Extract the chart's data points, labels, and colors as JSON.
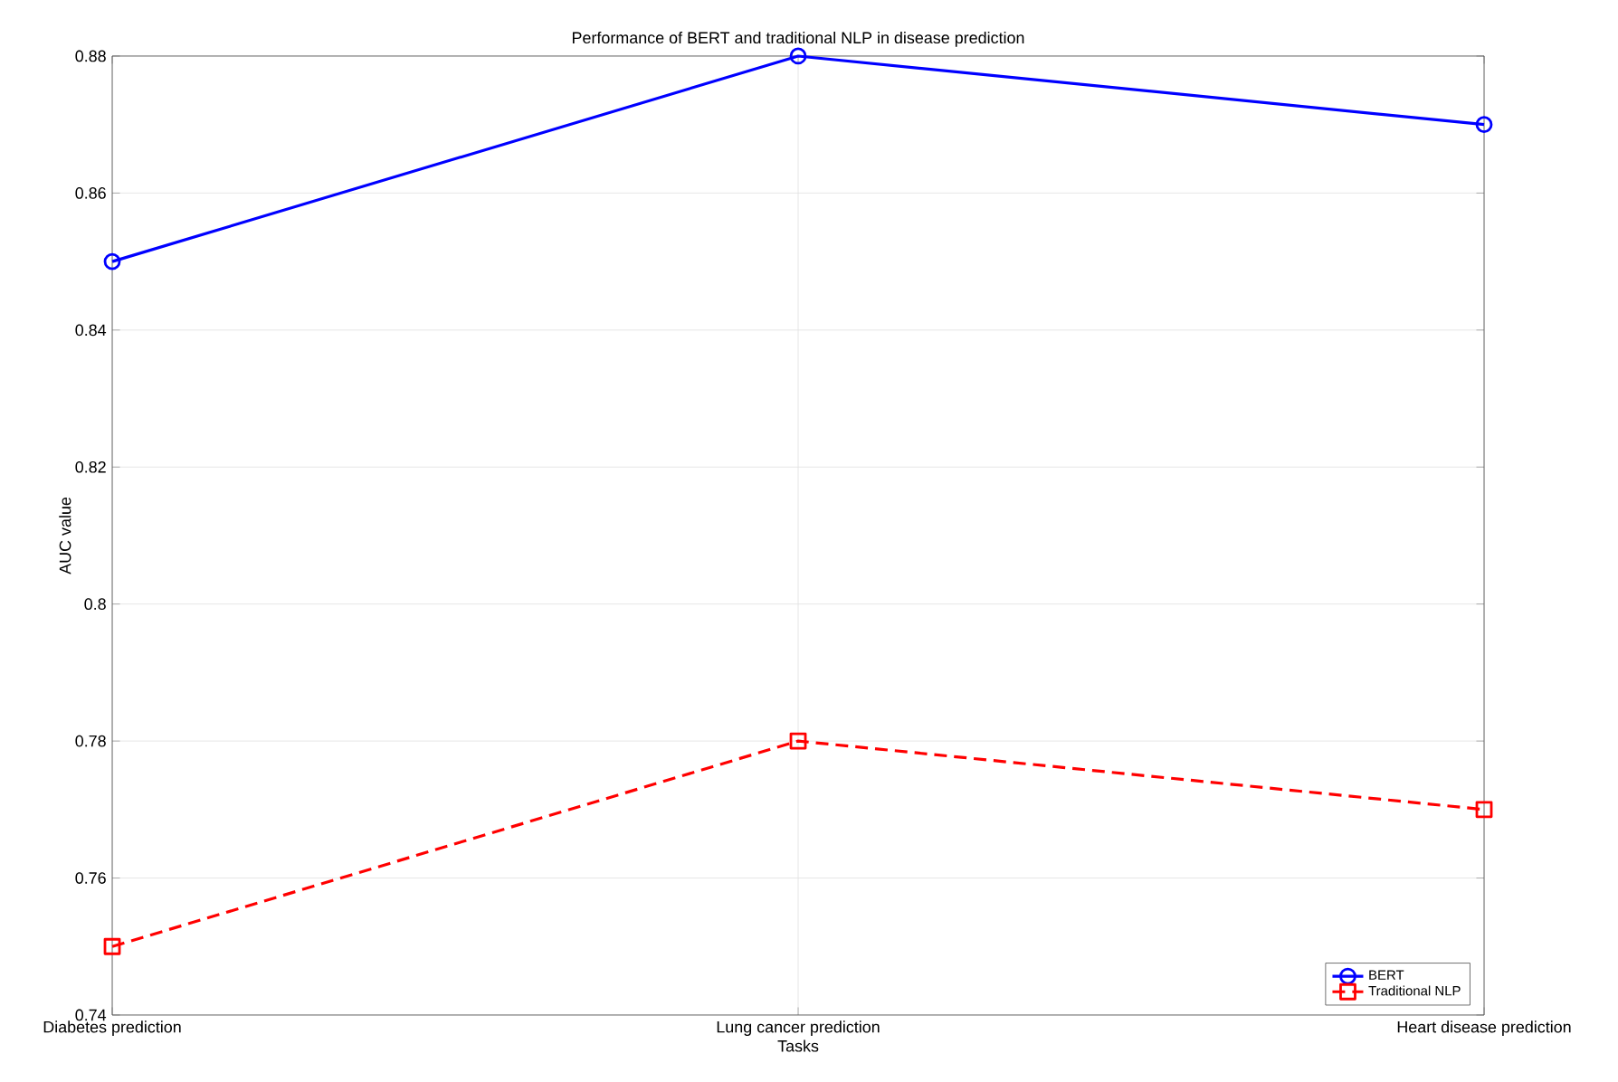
{
  "chart_data": {
    "type": "line",
    "title": "Performance of BERT and traditional NLP in disease prediction",
    "xlabel": "Tasks",
    "ylabel": "AUC value",
    "categories": [
      "Diabetes prediction",
      "Lung cancer prediction",
      "Heart disease prediction"
    ],
    "series": [
      {
        "name": "BERT",
        "color": "#0000ff",
        "values": [
          0.85,
          0.88,
          0.87
        ],
        "marker": "circle",
        "line_style": "solid"
      },
      {
        "name": "Traditional NLP",
        "color": "#ff0000",
        "values": [
          0.75,
          0.78,
          0.77
        ],
        "marker": "square",
        "line_style": "dashed"
      }
    ],
    "ylim": [
      0.74,
      0.88
    ],
    "yticks": [
      0.74,
      0.76,
      0.78,
      0.8,
      0.82,
      0.84,
      0.86,
      0.88
    ],
    "grid": true,
    "legend": "bottom right"
  }
}
